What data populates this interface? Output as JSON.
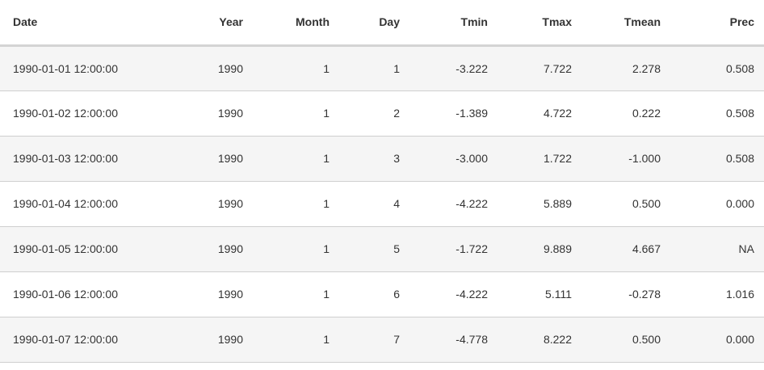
{
  "table": {
    "columns": [
      "Date",
      "Year",
      "Month",
      "Day",
      "Tmin",
      "Tmax",
      "Tmean",
      "Prec"
    ],
    "rows": [
      [
        "1990-01-01 12:00:00",
        "1990",
        "1",
        "1",
        "-3.222",
        "7.722",
        "2.278",
        "0.508"
      ],
      [
        "1990-01-02 12:00:00",
        "1990",
        "1",
        "2",
        "-1.389",
        "4.722",
        "0.222",
        "0.508"
      ],
      [
        "1990-01-03 12:00:00",
        "1990",
        "1",
        "3",
        "-3.000",
        "1.722",
        "-1.000",
        "0.508"
      ],
      [
        "1990-01-04 12:00:00",
        "1990",
        "1",
        "4",
        "-4.222",
        "5.889",
        "0.500",
        "0.000"
      ],
      [
        "1990-01-05 12:00:00",
        "1990",
        "1",
        "5",
        "-1.722",
        "9.889",
        "4.667",
        "NA"
      ],
      [
        "1990-01-06 12:00:00",
        "1990",
        "1",
        "6",
        "-4.222",
        "5.111",
        "-0.278",
        "1.016"
      ],
      [
        "1990-01-07 12:00:00",
        "1990",
        "1",
        "7",
        "-4.778",
        "8.222",
        "0.500",
        "0.000"
      ]
    ]
  }
}
